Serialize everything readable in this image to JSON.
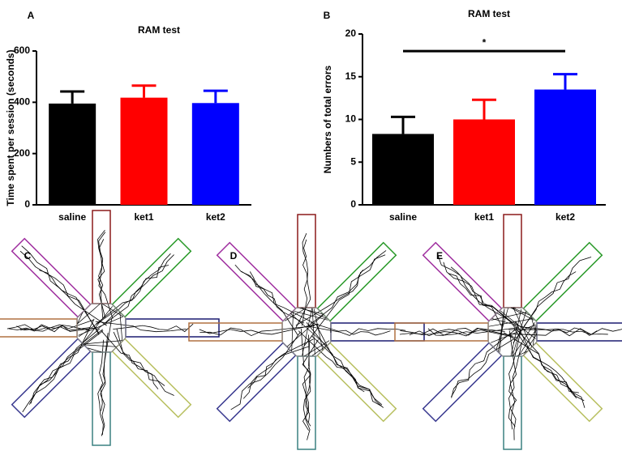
{
  "chart_data": [
    {
      "type": "bar",
      "panel_label": "A",
      "title": "RAM test",
      "y_label": "Time spent per session (seconds)",
      "categories": [
        "saline",
        "ket1",
        "ket2"
      ],
      "values": [
        395,
        418,
        397
      ],
      "errors": [
        47,
        47,
        48
      ],
      "colors": [
        "#000000",
        "#ff0000",
        "#0000ff"
      ],
      "ylim": [
        0,
        600
      ],
      "yticks": [
        0,
        200,
        400,
        600
      ]
    },
    {
      "type": "bar",
      "panel_label": "B",
      "title": "RAM test",
      "y_label": "Numbers of total errors",
      "categories": [
        "saline",
        "ket1",
        "ket2"
      ],
      "values": [
        8.3,
        10,
        13.5
      ],
      "errors": [
        2,
        2.3,
        1.8
      ],
      "colors": [
        "#000000",
        "#ff0000",
        "#0000ff"
      ],
      "ylim": [
        0,
        20
      ],
      "yticks": [
        0,
        5,
        10,
        15,
        20
      ],
      "annotation": {
        "text": "*",
        "y": 18
      }
    }
  ],
  "figure": {
    "panels": [
      {
        "label": "C"
      },
      {
        "label": "D"
      },
      {
        "label": "E"
      }
    ]
  }
}
